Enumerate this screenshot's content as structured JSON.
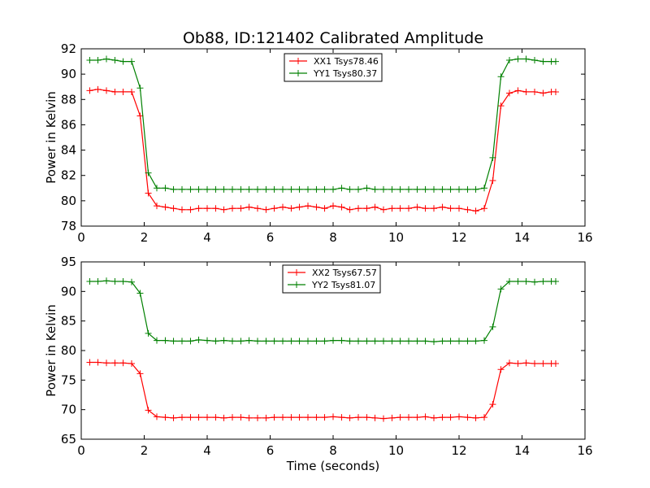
{
  "figure": {
    "title": "Ob88, ID:121402 Calibrated Amplitude",
    "xlabel": "Time (seconds)"
  },
  "chart_data": [
    {
      "type": "line",
      "title": "Ob88, ID:121402 Calibrated Amplitude",
      "xlabel": "",
      "ylabel": "Power in Kelvin",
      "xlim": [
        0,
        16
      ],
      "ylim": [
        78,
        92
      ],
      "xticks": [
        0,
        2,
        4,
        6,
        8,
        10,
        12,
        14,
        16
      ],
      "yticks": [
        78,
        80,
        82,
        84,
        86,
        88,
        90,
        92
      ],
      "grid": false,
      "legend": "top-center",
      "x": [
        0.27,
        0.53,
        0.8,
        1.07,
        1.33,
        1.6,
        1.87,
        2.13,
        2.4,
        2.67,
        2.93,
        3.2,
        3.47,
        3.73,
        4.0,
        4.27,
        4.53,
        4.8,
        5.07,
        5.33,
        5.6,
        5.87,
        6.13,
        6.4,
        6.67,
        6.93,
        7.2,
        7.47,
        7.73,
        8.0,
        8.27,
        8.53,
        8.8,
        9.07,
        9.33,
        9.6,
        9.87,
        10.13,
        10.4,
        10.67,
        10.93,
        11.2,
        11.47,
        11.73,
        12.0,
        12.27,
        12.53,
        12.8,
        13.07,
        13.33,
        13.6,
        13.87,
        14.13,
        14.4,
        14.67,
        14.93,
        15.07
      ],
      "series": [
        {
          "name": "XX1 Tsys78.46",
          "color": "#ff0000",
          "values": [
            88.7,
            88.8,
            88.7,
            88.6,
            88.6,
            88.6,
            86.7,
            80.6,
            79.6,
            79.5,
            79.4,
            79.3,
            79.3,
            79.4,
            79.4,
            79.4,
            79.3,
            79.4,
            79.4,
            79.5,
            79.4,
            79.3,
            79.4,
            79.5,
            79.4,
            79.5,
            79.6,
            79.5,
            79.4,
            79.6,
            79.5,
            79.3,
            79.4,
            79.4,
            79.5,
            79.3,
            79.4,
            79.4,
            79.4,
            79.5,
            79.4,
            79.4,
            79.5,
            79.4,
            79.4,
            79.3,
            79.2,
            79.4,
            81.6,
            87.5,
            88.5,
            88.7,
            88.6,
            88.6,
            88.5,
            88.6,
            88.6
          ]
        },
        {
          "name": "YY1 Tsys80.37",
          "color": "#008000",
          "values": [
            91.1,
            91.1,
            91.2,
            91.1,
            91.0,
            91.0,
            88.9,
            82.2,
            81.0,
            81.0,
            80.9,
            80.9,
            80.9,
            80.9,
            80.9,
            80.9,
            80.9,
            80.9,
            80.9,
            80.9,
            80.9,
            80.9,
            80.9,
            80.9,
            80.9,
            80.9,
            80.9,
            80.9,
            80.9,
            80.9,
            81.0,
            80.9,
            80.9,
            81.0,
            80.9,
            80.9,
            80.9,
            80.9,
            80.9,
            80.9,
            80.9,
            80.9,
            80.9,
            80.9,
            80.9,
            80.9,
            80.9,
            81.0,
            83.4,
            89.8,
            91.1,
            91.2,
            91.2,
            91.1,
            91.0,
            91.0,
            91.0
          ]
        }
      ]
    },
    {
      "type": "line",
      "title": "",
      "xlabel": "Time (seconds)",
      "ylabel": "Power in Kelvin",
      "xlim": [
        0,
        16
      ],
      "ylim": [
        65,
        95
      ],
      "xticks": [
        0,
        2,
        4,
        6,
        8,
        10,
        12,
        14,
        16
      ],
      "yticks": [
        65,
        70,
        75,
        80,
        85,
        90,
        95
      ],
      "grid": false,
      "legend": "top-center",
      "x": [
        0.27,
        0.53,
        0.8,
        1.07,
        1.33,
        1.6,
        1.87,
        2.13,
        2.4,
        2.67,
        2.93,
        3.2,
        3.47,
        3.73,
        4.0,
        4.27,
        4.53,
        4.8,
        5.07,
        5.33,
        5.6,
        5.87,
        6.13,
        6.4,
        6.67,
        6.93,
        7.2,
        7.47,
        7.73,
        8.0,
        8.27,
        8.53,
        8.8,
        9.07,
        9.33,
        9.6,
        9.87,
        10.13,
        10.4,
        10.67,
        10.93,
        11.2,
        11.47,
        11.73,
        12.0,
        12.27,
        12.53,
        12.8,
        13.07,
        13.33,
        13.6,
        13.87,
        14.13,
        14.4,
        14.67,
        14.93,
        15.07
      ],
      "series": [
        {
          "name": "XX2 Tsys67.57",
          "color": "#ff0000",
          "values": [
            78.0,
            78.0,
            77.9,
            77.9,
            77.9,
            77.8,
            76.1,
            69.9,
            68.8,
            68.7,
            68.6,
            68.7,
            68.7,
            68.7,
            68.7,
            68.7,
            68.6,
            68.7,
            68.7,
            68.6,
            68.6,
            68.6,
            68.7,
            68.7,
            68.7,
            68.7,
            68.7,
            68.7,
            68.7,
            68.8,
            68.7,
            68.6,
            68.7,
            68.7,
            68.6,
            68.5,
            68.6,
            68.7,
            68.7,
            68.7,
            68.8,
            68.6,
            68.7,
            68.7,
            68.8,
            68.7,
            68.6,
            68.7,
            70.9,
            76.8,
            77.9,
            77.8,
            77.9,
            77.8,
            77.8,
            77.8,
            77.8
          ]
        },
        {
          "name": "YY2 Tsys81.07",
          "color": "#008000",
          "values": [
            91.7,
            91.7,
            91.8,
            91.7,
            91.7,
            91.6,
            89.7,
            82.9,
            81.7,
            81.7,
            81.6,
            81.6,
            81.6,
            81.8,
            81.7,
            81.6,
            81.7,
            81.6,
            81.6,
            81.7,
            81.6,
            81.6,
            81.6,
            81.6,
            81.6,
            81.6,
            81.6,
            81.6,
            81.6,
            81.7,
            81.7,
            81.6,
            81.6,
            81.6,
            81.6,
            81.6,
            81.6,
            81.6,
            81.6,
            81.6,
            81.6,
            81.5,
            81.6,
            81.6,
            81.6,
            81.6,
            81.6,
            81.7,
            84.0,
            90.4,
            91.7,
            91.7,
            91.7,
            91.6,
            91.7,
            91.7,
            91.7
          ]
        }
      ]
    }
  ]
}
